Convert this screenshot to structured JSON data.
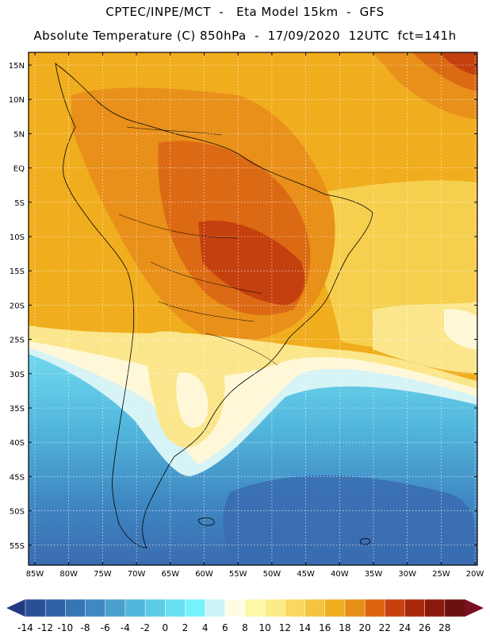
{
  "header": {
    "line1": "CPTEC/INPE/MCT  -   Eta Model 15km  -  GFS",
    "line2": "Absolute Temperature (C) 850hPa  -  17/09/2020  12UTC  fct=141h"
  },
  "axes": {
    "latitudes": [
      "15N",
      "10N",
      "5N",
      "EQ",
      "5S",
      "10S",
      "15S",
      "20S",
      "25S",
      "30S",
      "35S",
      "40S",
      "45S",
      "50S",
      "55S"
    ],
    "longitudes": [
      "85W",
      "80W",
      "75W",
      "70W",
      "65W",
      "60W",
      "55W",
      "50W",
      "45W",
      "40W",
      "35W",
      "30W",
      "25W",
      "20W"
    ]
  },
  "colorbar": {
    "labels": [
      "-14",
      "-12",
      "-10",
      "-8",
      "-6",
      "-4",
      "-2",
      "0",
      "2",
      "4",
      "6",
      "8",
      "10",
      "12",
      "14",
      "16",
      "18",
      "20",
      "22",
      "24",
      "26",
      "28"
    ],
    "colors": [
      "#2a4f96",
      "#2e62a6",
      "#3775b4",
      "#3f88c2",
      "#4a9fcf",
      "#52b6dc",
      "#5ccbe6",
      "#66dff0",
      "#75f3fb",
      "#cdf3fa",
      "#fffce6",
      "#fdf8a8",
      "#fceb86",
      "#f8d860",
      "#f4c440",
      "#eeae1e",
      "#e68e16",
      "#db6410",
      "#c8400e",
      "#a8280c",
      "#8a1a0c",
      "#6c1010"
    ],
    "under_color": "#203c80",
    "over_color": "#7a1020"
  },
  "field_colors": {
    "ocean_deep": "#3a6cb0",
    "cold_mid": "#4f9fd4",
    "cyan": "#6fd8ee",
    "pale": "#d6f3f6",
    "cream": "#fff8d8",
    "light_yellow": "#fbe68c",
    "yellow": "#f6cf4e",
    "orange_light": "#f0ad1e",
    "orange": "#e8901a",
    "dark_orange": "#dc6a14",
    "red": "#c4400e"
  }
}
